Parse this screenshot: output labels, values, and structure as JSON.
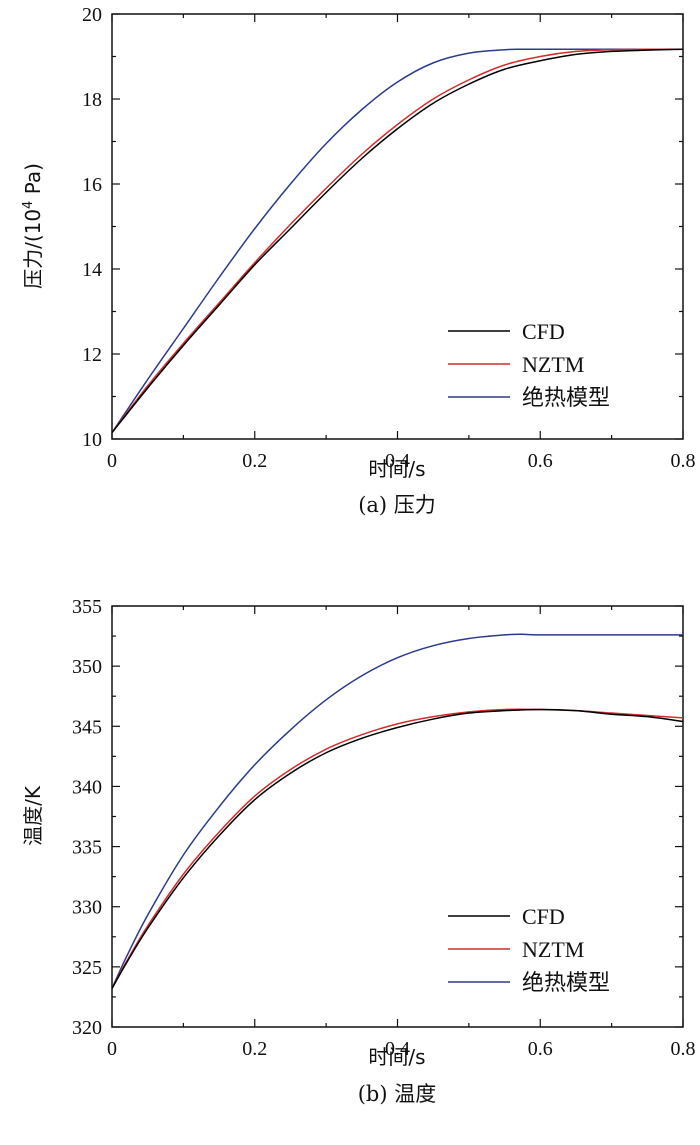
{
  "chart_data": [
    {
      "type": "line",
      "caption": "(a) 压力",
      "xlabel": "时间/s",
      "ylabel_prefix": "压力/(10",
      "ylabel_sup": "4",
      "ylabel_suffix": " Pa)",
      "xlim": [
        0,
        0.8
      ],
      "ylim": [
        10,
        20
      ],
      "xticks": [
        0,
        0.2,
        0.4,
        0.6,
        0.8
      ],
      "xtick_labels": [
        "0",
        "0.2",
        "0.4",
        "0.6",
        "0.8"
      ],
      "yticks": [
        10,
        12,
        14,
        16,
        18,
        20
      ],
      "ytick_labels": [
        "10",
        "12",
        "14",
        "16",
        "18",
        "20"
      ],
      "legend_position": "lower-right",
      "series": [
        {
          "name": "CFD",
          "color": "#000000",
          "x": [
            0,
            0.05,
            0.1,
            0.15,
            0.2,
            0.25,
            0.3,
            0.35,
            0.4,
            0.45,
            0.5,
            0.55,
            0.6,
            0.65,
            0.7,
            0.75,
            0.8
          ],
          "y": [
            10.15,
            11.2,
            12.2,
            13.15,
            14.1,
            14.95,
            15.8,
            16.6,
            17.3,
            17.9,
            18.35,
            18.7,
            18.9,
            19.05,
            19.12,
            19.15,
            19.17
          ]
        },
        {
          "name": "NZTM",
          "color": "#d42b2b",
          "x": [
            0,
            0.05,
            0.1,
            0.15,
            0.2,
            0.25,
            0.3,
            0.35,
            0.4,
            0.45,
            0.5,
            0.55,
            0.6,
            0.65,
            0.7,
            0.75,
            0.8
          ],
          "y": [
            10.15,
            11.25,
            12.25,
            13.2,
            14.15,
            15.05,
            15.9,
            16.7,
            17.4,
            18.0,
            18.45,
            18.8,
            19.0,
            19.12,
            19.16,
            19.17,
            19.17
          ]
        },
        {
          "name": "绝热模型",
          "color": "#2b3a8c",
          "x": [
            0,
            0.05,
            0.1,
            0.15,
            0.2,
            0.25,
            0.3,
            0.35,
            0.4,
            0.45,
            0.5,
            0.55,
            0.575,
            0.6,
            0.7,
            0.8
          ],
          "y": [
            10.15,
            11.4,
            12.6,
            13.8,
            14.95,
            16.0,
            16.95,
            17.75,
            18.4,
            18.85,
            19.08,
            19.16,
            19.17,
            19.17,
            19.17,
            19.17
          ]
        }
      ]
    },
    {
      "type": "line",
      "caption": "(b) 温度",
      "xlabel": "时间/s",
      "ylabel": "温度/K",
      "xlim": [
        0,
        0.8
      ],
      "ylim": [
        320,
        355
      ],
      "xticks": [
        0,
        0.2,
        0.4,
        0.6,
        0.8
      ],
      "xtick_labels": [
        "0",
        "0.2",
        "0.4",
        "0.6",
        "0.8"
      ],
      "yticks": [
        320,
        325,
        330,
        335,
        340,
        345,
        350,
        355
      ],
      "ytick_labels": [
        "320",
        "325",
        "330",
        "335",
        "340",
        "345",
        "350",
        "355"
      ],
      "legend_position": "lower-right",
      "series": [
        {
          "name": "CFD",
          "color": "#000000",
          "x": [
            0,
            0.02,
            0.05,
            0.1,
            0.15,
            0.2,
            0.25,
            0.3,
            0.35,
            0.4,
            0.45,
            0.5,
            0.55,
            0.6,
            0.65,
            0.7,
            0.75,
            0.8
          ],
          "y": [
            323.2,
            325.3,
            328.2,
            332.4,
            335.9,
            338.9,
            341.1,
            342.8,
            344.0,
            344.9,
            345.6,
            346.1,
            346.3,
            346.4,
            346.3,
            346.0,
            345.8,
            345.4
          ]
        },
        {
          "name": "NZTM",
          "color": "#d42b2b",
          "x": [
            0,
            0.02,
            0.05,
            0.1,
            0.15,
            0.2,
            0.25,
            0.3,
            0.35,
            0.4,
            0.45,
            0.5,
            0.55,
            0.6,
            0.65,
            0.7,
            0.75,
            0.8
          ],
          "y": [
            323.2,
            325.4,
            328.4,
            332.7,
            336.2,
            339.2,
            341.4,
            343.1,
            344.3,
            345.2,
            345.8,
            346.2,
            346.4,
            346.4,
            346.3,
            346.1,
            345.9,
            345.7
          ]
        },
        {
          "name": "绝热模型",
          "color": "#2b3a8c",
          "x": [
            0,
            0.02,
            0.05,
            0.1,
            0.15,
            0.2,
            0.25,
            0.3,
            0.35,
            0.4,
            0.45,
            0.5,
            0.55,
            0.575,
            0.6,
            0.7,
            0.8
          ],
          "y": [
            323.2,
            325.8,
            329.3,
            334.3,
            338.3,
            341.8,
            344.7,
            347.2,
            349.2,
            350.7,
            351.7,
            352.3,
            352.6,
            352.65,
            352.6,
            352.6,
            352.6
          ]
        }
      ]
    }
  ]
}
